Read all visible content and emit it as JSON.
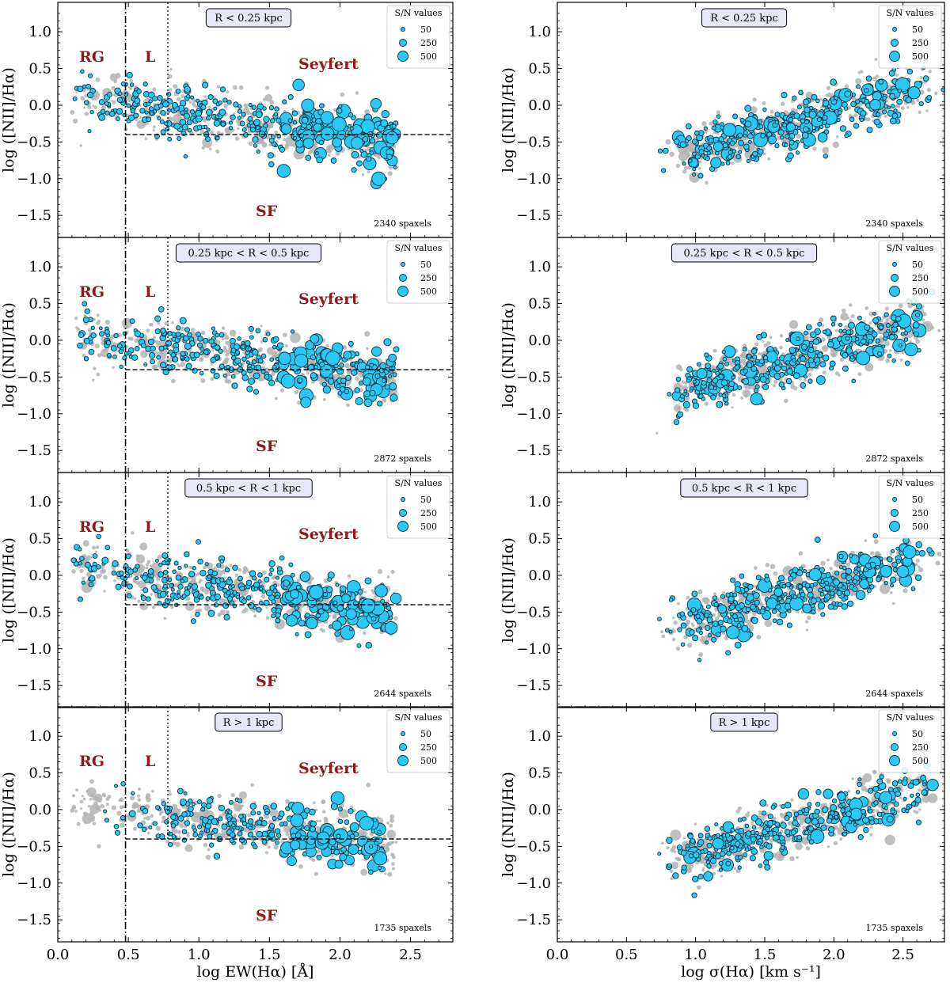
{
  "chart_data": [
    {
      "type": "scatter",
      "panel": "left",
      "xlabel": "log EW(Hα) [Å]",
      "ylabel": "log ([NII]/Hα)",
      "xlim": [
        0.0,
        2.8
      ],
      "ylim": [
        -1.8,
        1.4
      ],
      "xticks": [
        "0.0",
        "0.5",
        "1.0",
        "1.5",
        "2.0",
        "2.5"
      ],
      "yticks": [
        "1.0",
        "0.5",
        "0.0",
        "−0.5",
        "−1.0",
        "−1.5"
      ],
      "region_labels": [
        "RG",
        "L",
        "Seyfert",
        "SF"
      ],
      "demarcation": {
        "vertical_dashdot_x": 0.48,
        "vertical_dotted_x": 0.78,
        "horizontal_dashed_y": -0.4
      },
      "legend": {
        "title": "S/N values",
        "sizes": [
          50,
          250,
          500
        ],
        "location": "top-right"
      },
      "rows": [
        {
          "radius_bin": "R < 0.25 kpc",
          "spaxels": "2340 spaxels"
        },
        {
          "radius_bin": "0.25 kpc < R < 0.5 kpc",
          "spaxels": "2872 spaxels"
        },
        {
          "radius_bin": "0.5 kpc < R < 1 kpc",
          "spaxels": "2644 spaxels"
        },
        {
          "radius_bin": "R > 1 kpc",
          "spaxels": "1735 spaxels"
        }
      ],
      "series": [
        {
          "name": "all spaxels",
          "color": "#b3b3b3"
        },
        {
          "name": "spaxels in radius bin",
          "color": "#29c8f5"
        }
      ],
      "trend_description": "Points spread from log EW 0.1 to 2.45; [NII]/Hα falls from about 0.1 at low EW to about −0.4 at high EW"
    },
    {
      "type": "scatter",
      "panel": "right",
      "xlabel": "log σ(Hα) [km s⁻¹]",
      "ylabel": "log ([NII]/Hα)",
      "xlim": [
        0.0,
        2.8
      ],
      "ylim": [
        -1.8,
        1.4
      ],
      "xticks": [
        "0.0",
        "0.5",
        "1.0",
        "1.5",
        "2.0",
        "2.5"
      ],
      "yticks": [
        "1.0",
        "0.5",
        "0.0",
        "−0.5",
        "−1.0",
        "−1.5"
      ],
      "legend": {
        "title": "S/N values",
        "sizes": [
          50,
          250,
          500
        ],
        "location": "top-right"
      },
      "rows": [
        {
          "radius_bin": "R < 0.25 kpc",
          "spaxels": "2340 spaxels"
        },
        {
          "radius_bin": "0.25 kpc < R < 0.5 kpc",
          "spaxels": "2872 spaxels"
        },
        {
          "radius_bin": "0.5 kpc < R < 1 kpc",
          "spaxels": "2644 spaxels"
        },
        {
          "radius_bin": "R > 1 kpc",
          "spaxels": "1735 spaxels"
        }
      ],
      "series": [
        {
          "name": "all spaxels",
          "color": "#b3b3b3"
        },
        {
          "name": "spaxels in radius bin",
          "color": "#29c8f5"
        }
      ],
      "trend_description": "Positive correlation: [NII]/Hα rises from about −0.6 at log σ 1.0 to about 0.2 at log σ 2.6"
    }
  ]
}
